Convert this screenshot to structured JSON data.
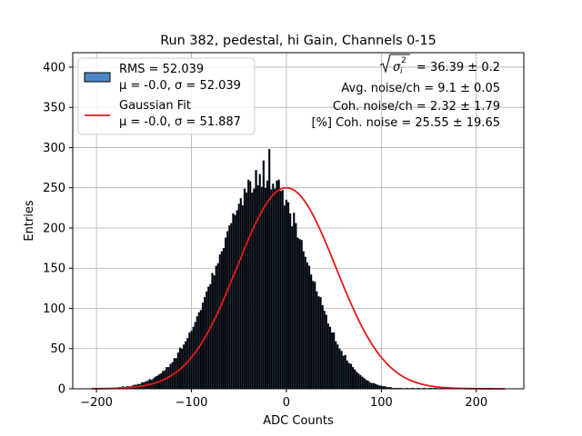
{
  "chart_data": {
    "type": "bar",
    "title": "Run 382, pedestal, hi Gain, Channels 0-15",
    "xlabel": "ADC Counts",
    "ylabel": "Entries",
    "xlim": [
      -225,
      250
    ],
    "ylim": [
      0,
      418
    ],
    "xticks": [
      -200,
      -100,
      0,
      100,
      200
    ],
    "yticks": [
      0,
      50,
      100,
      150,
      200,
      250,
      300,
      350,
      400
    ],
    "xtick_labels": [
      "−200",
      "−100",
      "0",
      "100",
      "200"
    ],
    "ytick_labels": [
      "0",
      "50",
      "100",
      "150",
      "200",
      "250",
      "300",
      "350",
      "400"
    ],
    "grid": true,
    "legend_position": "upper-left",
    "legend": [
      {
        "kind": "patch",
        "line1": "RMS = 52.039",
        "line2": "μ = -0.0, σ = 52.039",
        "color": "#4c86c6"
      },
      {
        "kind": "line",
        "line1": "Gaussian Fit",
        "line2": "μ = -0.0, σ = 51.887",
        "color": "#e31a1c"
      }
    ],
    "annotations": [
      {
        "prefix": "√σ",
        "sub": "i",
        "sup": "2",
        "text": " = 36.39 ± 0.2"
      },
      {
        "text": "Avg. noise/ch = 9.1 ± 0.05"
      },
      {
        "text": "Coh. noise/ch = 2.32 ± 1.79"
      },
      {
        "text": "[%] Coh. noise = 25.55 ± 19.65"
      }
    ],
    "histogram": {
      "bin_range": [
        -205,
        230
      ],
      "bin_width": 2,
      "counts": [
        1,
        1,
        1,
        1,
        0,
        1,
        0,
        1,
        1,
        0,
        1,
        1,
        1,
        1,
        2,
        2,
        3,
        2,
        3,
        3,
        3,
        4,
        5,
        5,
        6,
        6,
        8,
        8,
        9,
        10,
        12,
        11,
        13,
        15,
        16,
        18,
        19,
        22,
        23,
        27,
        27,
        31,
        33,
        38,
        38,
        45,
        51,
        50,
        55,
        59,
        63,
        70,
        72,
        77,
        83,
        90,
        95,
        98,
        107,
        114,
        121,
        127,
        130,
        144,
        141,
        153,
        156,
        167,
        171,
        175,
        188,
        196,
        203,
        206,
        218,
        216,
        222,
        230,
        237,
        228,
        249,
        244,
        260,
        258,
        244,
        249,
        272,
        253,
        267,
        251,
        284,
        250,
        259,
        298,
        248,
        255,
        249,
        259,
        260,
        246,
        247,
        228,
        235,
        232,
        218,
        202,
        219,
        206,
        188,
        186,
        185,
        171,
        164,
        157,
        153,
        142,
        134,
        133,
        121,
        115,
        114,
        104,
        97,
        92,
        81,
        77,
        70,
        70,
        59,
        55,
        50,
        47,
        41,
        42,
        35,
        32,
        31,
        27,
        24,
        21,
        19,
        17,
        15,
        13,
        11,
        10,
        8,
        7,
        7,
        6,
        5,
        4,
        4,
        3,
        3,
        2,
        2,
        2,
        1,
        1,
        1,
        1,
        1,
        1,
        0,
        1,
        1,
        0,
        1,
        1,
        0,
        1,
        1,
        0,
        1,
        1,
        0,
        1,
        1,
        0,
        1,
        1,
        0,
        1,
        1,
        0,
        1,
        1,
        0,
        1,
        1,
        0,
        1,
        0,
        1,
        0,
        1,
        0,
        1,
        0,
        1,
        0,
        1,
        0,
        1,
        0,
        1,
        0,
        1,
        0,
        1,
        0,
        0
      ],
      "bar_color": "#000000",
      "edge_color": "#4c6e9a"
    },
    "series": [
      {
        "name": "Gaussian Fit",
        "mu": 0.0,
        "sigma": 51.887,
        "amplitude": 250,
        "x_range": [
          -205,
          230
        ],
        "color": "#e31a1c"
      }
    ]
  }
}
